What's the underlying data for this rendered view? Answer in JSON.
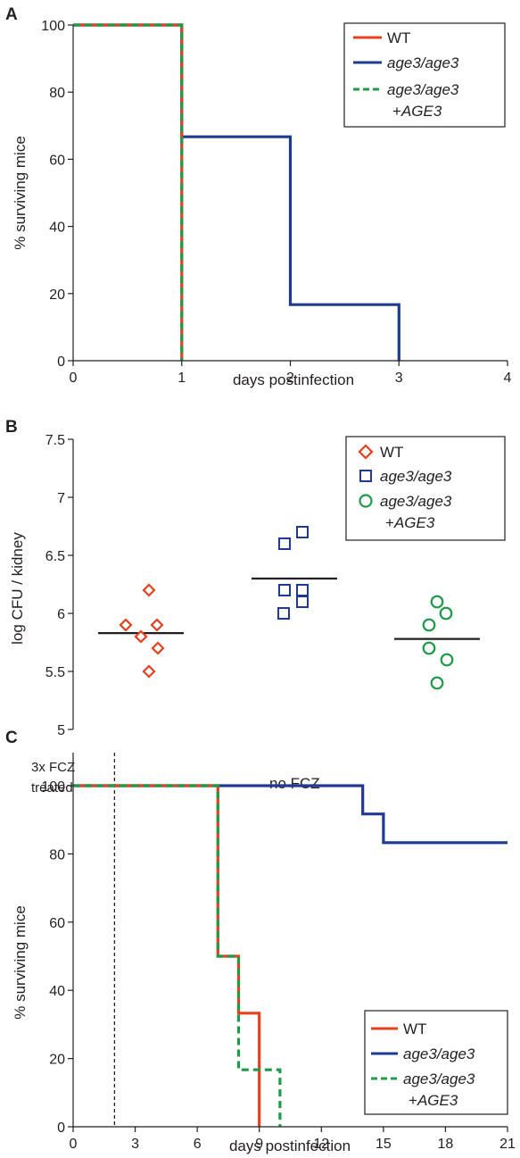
{
  "colors": {
    "wt": "#e8401c",
    "mut": "#1e3a93",
    "comp": "#1f9a48",
    "axis": "#231f20"
  },
  "chart_data": [
    {
      "panel": "A",
      "type": "line",
      "step": true,
      "xlabel": "days postinfection",
      "ylabel": "% surviving mice",
      "xlim": [
        0,
        4
      ],
      "ylim": [
        0,
        100
      ],
      "xticks": [
        0,
        1,
        2,
        3,
        4
      ],
      "yticks": [
        0,
        20,
        40,
        60,
        80,
        100
      ],
      "legend_position": "top-right",
      "series": [
        {
          "name": "WT",
          "x": [
            0,
            1,
            1
          ],
          "y": [
            100,
            100,
            0
          ],
          "style": "solid",
          "color": "#e8401c"
        },
        {
          "name": "age3/age3",
          "x": [
            0,
            1,
            1,
            2,
            2,
            3,
            3
          ],
          "y": [
            100,
            100,
            66.7,
            66.7,
            16.7,
            16.7,
            0
          ],
          "style": "solid",
          "color": "#1e3a93"
        },
        {
          "name": "age3/age3 +AGE3",
          "x": [
            0,
            1,
            1
          ],
          "y": [
            100,
            100,
            0
          ],
          "style": "dashed",
          "color": "#1f9a48"
        }
      ]
    },
    {
      "panel": "B",
      "type": "scatter",
      "ylabel": "log CFU / kidney",
      "ylim": [
        5,
        7.5
      ],
      "yticks": [
        5,
        5.5,
        6,
        6.5,
        7,
        7.5
      ],
      "legend_position": "top-right",
      "series": [
        {
          "name": "WT",
          "marker": "diamond",
          "color": "#e8401c",
          "values": [
            6.2,
            5.9,
            5.9,
            5.8,
            5.7,
            5.5
          ],
          "mean": 5.83
        },
        {
          "name": "age3/age3",
          "marker": "square",
          "color": "#1e3a93",
          "values": [
            6.7,
            6.6,
            6.2,
            6.2,
            6.1,
            6.0
          ],
          "mean": 6.3
        },
        {
          "name": "age3/age3 +AGE3",
          "marker": "circle",
          "color": "#1f9a48",
          "values": [
            6.1,
            6.0,
            5.9,
            5.7,
            5.6,
            5.4
          ],
          "mean": 5.78
        }
      ]
    },
    {
      "panel": "C",
      "type": "line",
      "step": true,
      "xlabel": "days postinfection",
      "ylabel": "% surviving mice",
      "xlim": [
        0,
        21
      ],
      "ylim": [
        0,
        100
      ],
      "xticks": [
        0,
        3,
        6,
        9,
        12,
        15,
        18,
        21
      ],
      "yticks": [
        0,
        20,
        40,
        60,
        80,
        100
      ],
      "annotations": {
        "treated": [
          "3x FCZ",
          "treated"
        ],
        "untreated": "no FCZ",
        "treatment_end_day": 2
      },
      "legend_position": "bottom-right",
      "series": [
        {
          "name": "WT",
          "x": [
            0,
            7,
            7,
            8,
            8,
            9,
            9
          ],
          "y": [
            100,
            100,
            50,
            50,
            33.3,
            33.3,
            0
          ],
          "style": "solid",
          "color": "#e8401c"
        },
        {
          "name": "age3/age3",
          "x": [
            0,
            14,
            14,
            15,
            15,
            21
          ],
          "y": [
            100,
            100,
            91.7,
            91.7,
            83.3,
            83.3
          ],
          "style": "solid",
          "color": "#1e3a93"
        },
        {
          "name": "age3/age3 +AGE3",
          "x": [
            0,
            7,
            7,
            8,
            8,
            10,
            10
          ],
          "y": [
            100,
            100,
            50,
            50,
            16.7,
            16.7,
            0
          ],
          "style": "dashed",
          "color": "#1f9a48"
        }
      ]
    }
  ],
  "panels": {
    "a": {
      "letter": "A"
    },
    "b": {
      "letter": "B"
    },
    "c": {
      "letter": "C"
    }
  },
  "legend": {
    "wt": "WT",
    "mut": "age3/age3",
    "comp_line1": "age3/age3",
    "comp_line2_prefix": "+",
    "comp_line2_gene": "AGE3"
  }
}
